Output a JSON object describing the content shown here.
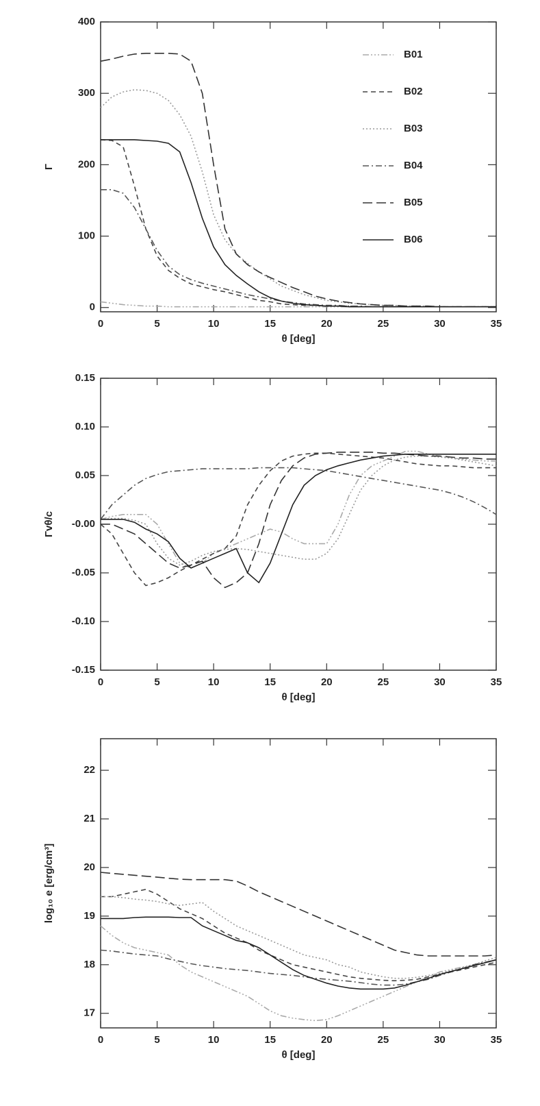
{
  "chart_data": [
    {
      "type": "line",
      "ylabel": "Γ",
      "xlabel": "θ [deg]",
      "legend": "upper right",
      "x": [
        0,
        1,
        2,
        3,
        4,
        5,
        6,
        7,
        8,
        9,
        10,
        11,
        12,
        13,
        14,
        15,
        16,
        17,
        18,
        19,
        20,
        21,
        22,
        23,
        24,
        25,
        26,
        27,
        28,
        29,
        30,
        31,
        32,
        33,
        34,
        35
      ],
      "xlim": [
        0,
        35
      ],
      "xticks": [
        0,
        5,
        10,
        15,
        20,
        25,
        30,
        35
      ],
      "ylim": [
        -6,
        400
      ],
      "yticks": [
        0,
        100,
        200,
        300,
        400
      ],
      "series": [
        {
          "name": "B01",
          "color": "#aaaaaa",
          "style": "dashdotdot",
          "values": [
            8,
            6,
            4,
            3,
            2,
            2,
            1,
            1,
            1,
            1,
            1,
            1,
            1,
            1,
            1,
            1,
            1,
            1,
            1,
            1,
            1,
            1,
            1,
            1,
            1,
            1,
            1,
            1,
            1,
            1,
            1,
            1,
            1,
            1,
            1,
            1
          ]
        },
        {
          "name": "B02",
          "color": "#444444",
          "style": "dashed",
          "values": [
            235,
            234,
            225,
            170,
            110,
            72,
            52,
            41,
            33,
            29,
            25,
            22,
            18,
            14,
            10,
            8,
            5,
            4,
            3,
            3,
            2,
            2,
            2,
            1,
            1,
            1,
            1,
            1,
            1,
            1,
            1,
            1,
            1,
            1,
            1,
            1
          ]
        },
        {
          "name": "B03",
          "color": "#999999",
          "style": "dotted",
          "values": [
            280,
            295,
            302,
            305,
            304,
            300,
            290,
            270,
            240,
            190,
            130,
            95,
            75,
            62,
            50,
            40,
            30,
            24,
            18,
            14,
            10,
            8,
            6,
            5,
            4,
            3,
            3,
            2,
            2,
            2,
            1,
            1,
            1,
            1,
            1,
            1
          ]
        },
        {
          "name": "B04",
          "color": "#555555",
          "style": "dashdot",
          "values": [
            165,
            165,
            160,
            140,
            110,
            80,
            58,
            46,
            39,
            34,
            30,
            26,
            22,
            18,
            15,
            12,
            9,
            7,
            5,
            4,
            3,
            3,
            2,
            2,
            1,
            1,
            1,
            1,
            1,
            1,
            1,
            1,
            1,
            1,
            1,
            1
          ]
        },
        {
          "name": "B05",
          "color": "#333333",
          "style": "longdash",
          "values": [
            345,
            348,
            352,
            355,
            356,
            356,
            356,
            355,
            345,
            300,
            200,
            110,
            75,
            60,
            50,
            42,
            35,
            28,
            22,
            16,
            12,
            9,
            7,
            5,
            4,
            3,
            3,
            2,
            2,
            2,
            1,
            1,
            1,
            1,
            1,
            1
          ]
        },
        {
          "name": "B06",
          "color": "#222222",
          "style": "solid",
          "values": [
            235,
            235,
            235,
            235,
            234,
            233,
            230,
            218,
            175,
            125,
            85,
            60,
            45,
            33,
            22,
            14,
            9,
            6,
            4,
            3,
            2,
            2,
            1,
            1,
            1,
            1,
            1,
            1,
            1,
            1,
            1,
            1,
            1,
            1,
            1,
            1
          ]
        }
      ]
    },
    {
      "type": "line",
      "ylabel": "Γvθ/c",
      "xlabel": "θ [deg]",
      "x": [
        0,
        1,
        2,
        3,
        4,
        5,
        6,
        7,
        8,
        9,
        10,
        11,
        12,
        13,
        14,
        15,
        16,
        17,
        18,
        19,
        20,
        21,
        22,
        23,
        24,
        25,
        26,
        27,
        28,
        29,
        30,
        31,
        32,
        33,
        34,
        35
      ],
      "xlim": [
        0,
        35
      ],
      "xticks": [
        0,
        5,
        10,
        15,
        20,
        25,
        30,
        35
      ],
      "ylim": [
        -0.15,
        0.15
      ],
      "yticks": [
        -0.15,
        {
          "value": -0.1,
          "label": "-0.10"
        },
        -0.05,
        {
          "value": 0,
          "label": "-0.00"
        },
        0.05,
        {
          "value": 0.1,
          "label": "0.10"
        },
        0.15
      ],
      "series": [
        {
          "color": "#aaaaaa",
          "style": "dashdotdot",
          "values": [
            0.005,
            0.008,
            0.01,
            0.01,
            0.01,
            0.0,
            -0.02,
            -0.04,
            -0.045,
            -0.04,
            -0.03,
            -0.025,
            -0.02,
            -0.015,
            -0.01,
            -0.005,
            -0.008,
            -0.015,
            -0.02,
            -0.02,
            -0.02,
            0.0,
            0.03,
            0.05,
            0.06,
            0.065,
            0.07,
            0.075,
            0.075,
            0.072,
            0.07,
            0.068,
            0.067,
            0.066,
            0.065,
            0.065
          ]
        },
        {
          "color": "#444444",
          "style": "dashed",
          "values": [
            0.0,
            -0.01,
            -0.03,
            -0.05,
            -0.063,
            -0.06,
            -0.055,
            -0.048,
            -0.042,
            -0.036,
            -0.03,
            -0.025,
            -0.012,
            0.02,
            0.04,
            0.055,
            0.065,
            0.07,
            0.072,
            0.073,
            0.073,
            0.072,
            0.071,
            0.07,
            0.069,
            0.068,
            0.066,
            0.064,
            0.062,
            0.061,
            0.06,
            0.06,
            0.059,
            0.058,
            0.058,
            0.058
          ]
        },
        {
          "color": "#999999",
          "style": "dotted",
          "values": [
            0.005,
            0.006,
            0.006,
            0.004,
            0.0,
            -0.02,
            -0.035,
            -0.042,
            -0.038,
            -0.032,
            -0.028,
            -0.026,
            -0.025,
            -0.026,
            -0.028,
            -0.03,
            -0.032,
            -0.034,
            -0.036,
            -0.036,
            -0.03,
            -0.015,
            0.01,
            0.035,
            0.05,
            0.06,
            0.066,
            0.069,
            0.07,
            0.07,
            0.069,
            0.068,
            0.066,
            0.064,
            0.062,
            0.06
          ]
        },
        {
          "color": "#555555",
          "style": "dashdot",
          "values": [
            0.005,
            0.02,
            0.03,
            0.04,
            0.047,
            0.051,
            0.054,
            0.055,
            0.056,
            0.057,
            0.057,
            0.057,
            0.057,
            0.057,
            0.058,
            0.058,
            0.058,
            0.058,
            0.057,
            0.056,
            0.055,
            0.053,
            0.051,
            0.049,
            0.047,
            0.045,
            0.043,
            0.041,
            0.039,
            0.037,
            0.035,
            0.032,
            0.028,
            0.023,
            0.017,
            0.01
          ]
        },
        {
          "color": "#333333",
          "style": "longdash",
          "values": [
            0.0,
            0.0,
            -0.005,
            -0.01,
            -0.02,
            -0.03,
            -0.04,
            -0.045,
            -0.042,
            -0.038,
            -0.055,
            -0.065,
            -0.06,
            -0.05,
            -0.02,
            0.02,
            0.045,
            0.06,
            0.068,
            0.072,
            0.073,
            0.074,
            0.074,
            0.074,
            0.074,
            0.073,
            0.073,
            0.072,
            0.071,
            0.07,
            0.07,
            0.069,
            0.068,
            0.068,
            0.067,
            0.067
          ]
        },
        {
          "color": "#222222",
          "style": "solid",
          "values": [
            0.005,
            0.005,
            0.005,
            0.002,
            -0.005,
            -0.01,
            -0.018,
            -0.035,
            -0.045,
            -0.04,
            -0.035,
            -0.03,
            -0.025,
            -0.05,
            -0.06,
            -0.04,
            -0.01,
            0.02,
            0.04,
            0.05,
            0.056,
            0.06,
            0.063,
            0.066,
            0.068,
            0.07,
            0.071,
            0.072,
            0.072,
            0.072,
            0.072,
            0.072,
            0.072,
            0.072,
            0.072,
            0.072
          ]
        }
      ]
    },
    {
      "type": "line",
      "ylabel": "log₁₀ e [erg/cm³]",
      "xlabel": "θ [deg]",
      "x": [
        0,
        1,
        2,
        3,
        4,
        5,
        6,
        7,
        8,
        9,
        10,
        11,
        12,
        13,
        14,
        15,
        16,
        17,
        18,
        19,
        20,
        21,
        22,
        23,
        24,
        25,
        26,
        27,
        28,
        29,
        30,
        31,
        32,
        33,
        34,
        35
      ],
      "xlim": [
        0,
        35
      ],
      "xticks": [
        0,
        5,
        10,
        15,
        20,
        25,
        30,
        35
      ],
      "ylim": [
        16.7,
        22.65
      ],
      "yticks": [
        17,
        18,
        19,
        20,
        21,
        22
      ],
      "series": [
        {
          "color": "#aaaaaa",
          "style": "dashdotdot",
          "values": [
            18.8,
            18.6,
            18.45,
            18.35,
            18.3,
            18.25,
            18.2,
            18.0,
            17.85,
            17.75,
            17.65,
            17.55,
            17.45,
            17.35,
            17.2,
            17.05,
            16.95,
            16.9,
            16.87,
            16.85,
            16.87,
            16.95,
            17.05,
            17.15,
            17.25,
            17.35,
            17.45,
            17.55,
            17.65,
            17.75,
            17.85,
            17.9,
            17.95,
            18.0,
            18.05,
            18.1
          ]
        },
        {
          "color": "#444444",
          "style": "dashed",
          "values": [
            19.4,
            19.4,
            19.45,
            19.5,
            19.55,
            19.45,
            19.3,
            19.15,
            19.05,
            18.95,
            18.8,
            18.65,
            18.55,
            18.45,
            18.3,
            18.2,
            18.1,
            18.0,
            17.95,
            17.9,
            17.85,
            17.8,
            17.75,
            17.72,
            17.7,
            17.68,
            17.67,
            17.68,
            17.7,
            17.75,
            17.8,
            17.85,
            17.9,
            17.95,
            18.0,
            18.05
          ]
        },
        {
          "color": "#999999",
          "style": "dotted",
          "values": [
            19.4,
            19.4,
            19.38,
            19.35,
            19.33,
            19.3,
            19.25,
            19.22,
            19.25,
            19.28,
            19.1,
            18.95,
            18.8,
            18.7,
            18.6,
            18.5,
            18.4,
            18.3,
            18.2,
            18.15,
            18.1,
            18.0,
            17.95,
            17.85,
            17.8,
            17.75,
            17.72,
            17.72,
            17.74,
            17.78,
            17.82,
            17.88,
            17.94,
            18.0,
            18.08,
            18.15
          ]
        },
        {
          "color": "#555555",
          "style": "dashdot",
          "values": [
            18.3,
            18.28,
            18.25,
            18.22,
            18.2,
            18.18,
            18.12,
            18.07,
            18.02,
            17.98,
            17.95,
            17.92,
            17.9,
            17.88,
            17.85,
            17.82,
            17.8,
            17.78,
            17.75,
            17.72,
            17.7,
            17.68,
            17.66,
            17.63,
            17.6,
            17.58,
            17.58,
            17.6,
            17.65,
            17.7,
            17.78,
            17.85,
            17.92,
            18.0,
            18.05,
            18.1
          ]
        },
        {
          "color": "#333333",
          "style": "longdash",
          "values": [
            19.9,
            19.88,
            19.86,
            19.84,
            19.82,
            19.8,
            19.78,
            19.76,
            19.75,
            19.75,
            19.75,
            19.75,
            19.72,
            19.62,
            19.5,
            19.4,
            19.3,
            19.2,
            19.1,
            19.0,
            18.9,
            18.8,
            18.7,
            18.6,
            18.5,
            18.4,
            18.3,
            18.25,
            18.2,
            18.18,
            18.18,
            18.18,
            18.18,
            18.18,
            18.18,
            18.2
          ]
        },
        {
          "color": "#222222",
          "style": "solid",
          "values": [
            18.95,
            18.95,
            18.95,
            18.97,
            18.98,
            18.98,
            18.98,
            18.97,
            18.97,
            18.8,
            18.7,
            18.6,
            18.5,
            18.45,
            18.35,
            18.2,
            18.05,
            17.9,
            17.78,
            17.7,
            17.62,
            17.56,
            17.52,
            17.5,
            17.5,
            17.5,
            17.52,
            17.58,
            17.65,
            17.72,
            17.8,
            17.86,
            17.92,
            17.98,
            18.04,
            18.1
          ]
        }
      ]
    }
  ]
}
